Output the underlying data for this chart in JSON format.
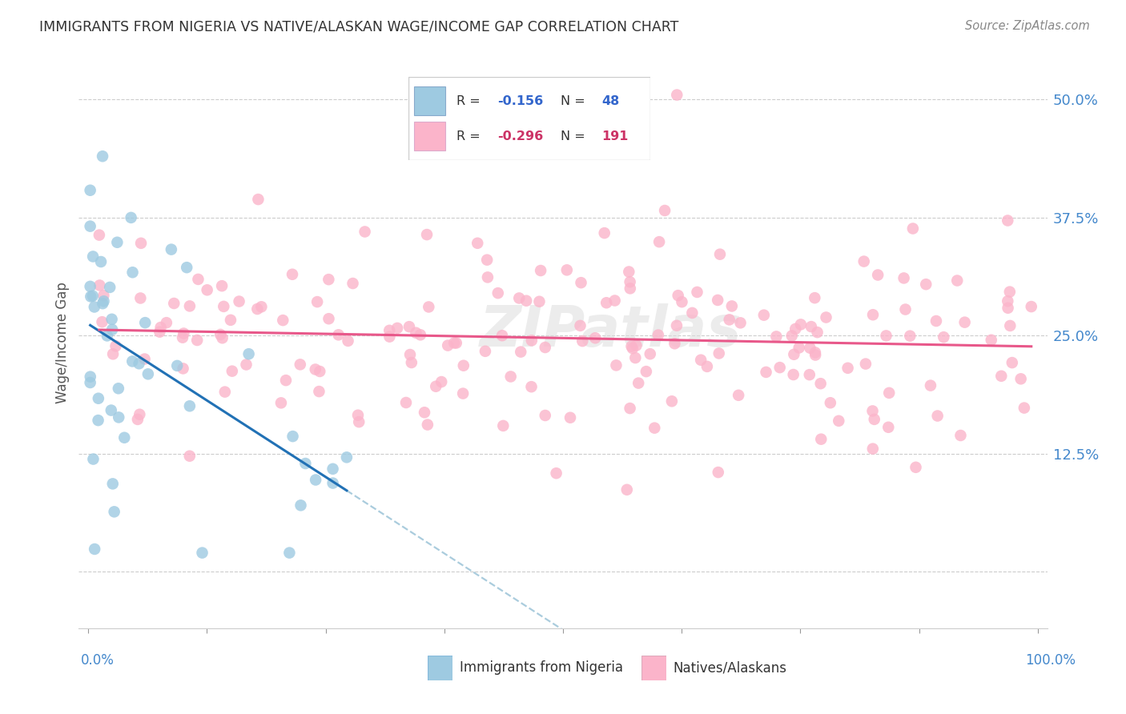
{
  "title": "IMMIGRANTS FROM NIGERIA VS NATIVE/ALASKAN WAGE/INCOME GAP CORRELATION CHART",
  "source": "Source: ZipAtlas.com",
  "ylabel": "Wage/Income Gap",
  "blue_color": "#9ecae1",
  "pink_color": "#fbb4ca",
  "blue_line_color": "#2171b5",
  "pink_line_color": "#e8588a",
  "dashed_color": "#aaccdd",
  "grid_color": "#cccccc",
  "right_tick_color": "#4488cc",
  "legend_blue_R": "R = -0.156",
  "legend_blue_N": "N = 48",
  "legend_pink_R": "R = -0.296",
  "legend_pink_N": "N = 191",
  "blue_N": 48,
  "pink_N": 191,
  "yticks": [
    0.0,
    0.125,
    0.25,
    0.375,
    0.5
  ],
  "ytick_labels_right": [
    "",
    "12.5%",
    "25.0%",
    "37.5%",
    "50.0%"
  ],
  "xmin": 0.0,
  "xmax": 100.0,
  "ymin": -0.06,
  "ymax": 0.545,
  "blue_intercept": 0.255,
  "blue_slope": -0.0055,
  "pink_intercept": 0.275,
  "pink_slope": -0.00065,
  "watermark": "ZIPatlas",
  "bottom_label_blue": "Immigrants from Nigeria",
  "bottom_label_pink": "Natives/Alaskans"
}
